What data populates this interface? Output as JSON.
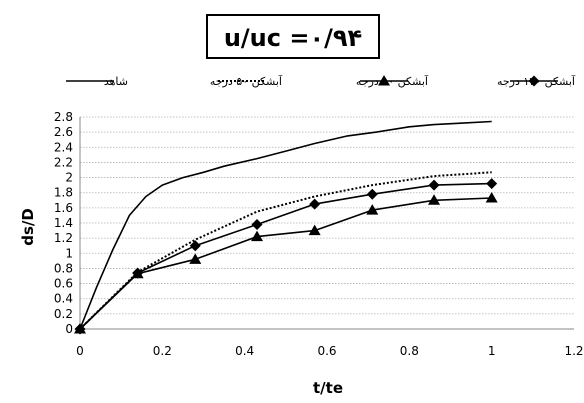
{
  "chart_data": {
    "type": "line",
    "title": "u/uc =۰/۹۴",
    "xlabel": "t/te",
    "ylabel": "ds/D",
    "xlim": [
      0,
      1.2
    ],
    "ylim": [
      0,
      2.8
    ],
    "x_ticks": [
      "0",
      "0.2",
      "0.4",
      "0.6",
      "0.8",
      "1",
      "1.2"
    ],
    "y_ticks": [
      "0",
      "0.2",
      "0.4",
      "0.6",
      "0.8",
      "1",
      "1.2",
      "1.4",
      "1.6",
      "1.8",
      "2",
      "2.2",
      "2.4",
      "2.6",
      "2.8"
    ],
    "grid": "horizontal",
    "legend_position": "top",
    "series": [
      {
        "name": "شاهد",
        "style": "solid",
        "marker": "none",
        "points": [
          [
            0,
            0
          ],
          [
            0.04,
            0.55
          ],
          [
            0.08,
            1.05
          ],
          [
            0.12,
            1.5
          ],
          [
            0.16,
            1.75
          ],
          [
            0.2,
            1.9
          ],
          [
            0.25,
            2.0
          ],
          [
            0.3,
            2.07
          ],
          [
            0.35,
            2.15
          ],
          [
            0.43,
            2.25
          ],
          [
            0.5,
            2.35
          ],
          [
            0.57,
            2.45
          ],
          [
            0.65,
            2.55
          ],
          [
            0.72,
            2.6
          ],
          [
            0.8,
            2.67
          ],
          [
            0.86,
            2.7
          ],
          [
            0.93,
            2.72
          ],
          [
            1.0,
            2.74
          ]
        ]
      },
      {
        "name": "آبشکن ۵۰ درجه",
        "style": "dotted",
        "marker": "none",
        "points": [
          [
            0,
            0
          ],
          [
            0.14,
            0.75
          ],
          [
            0.28,
            1.18
          ],
          [
            0.43,
            1.55
          ],
          [
            0.57,
            1.75
          ],
          [
            0.71,
            1.9
          ],
          [
            0.86,
            2.02
          ],
          [
            1.0,
            2.07
          ]
        ]
      },
      {
        "name": "آبشکن ۹۰ درجه",
        "style": "solid",
        "marker": "triangle",
        "points": [
          [
            0,
            0
          ],
          [
            0.14,
            0.73
          ],
          [
            0.28,
            0.92
          ],
          [
            0.43,
            1.22
          ],
          [
            0.57,
            1.3
          ],
          [
            0.71,
            1.57
          ],
          [
            0.86,
            1.7
          ],
          [
            1.0,
            1.73
          ]
        ]
      },
      {
        "name": "آبشکن ۱۲۰ درجه",
        "style": "solid",
        "marker": "diamond",
        "points": [
          [
            0,
            0
          ],
          [
            0.14,
            0.74
          ],
          [
            0.28,
            1.1
          ],
          [
            0.43,
            1.38
          ],
          [
            0.57,
            1.65
          ],
          [
            0.71,
            1.78
          ],
          [
            0.86,
            1.9
          ],
          [
            1.0,
            1.92
          ]
        ]
      }
    ]
  },
  "colors": {
    "line": "#000000",
    "grid": "#b0b0b0",
    "text": "#000000"
  }
}
